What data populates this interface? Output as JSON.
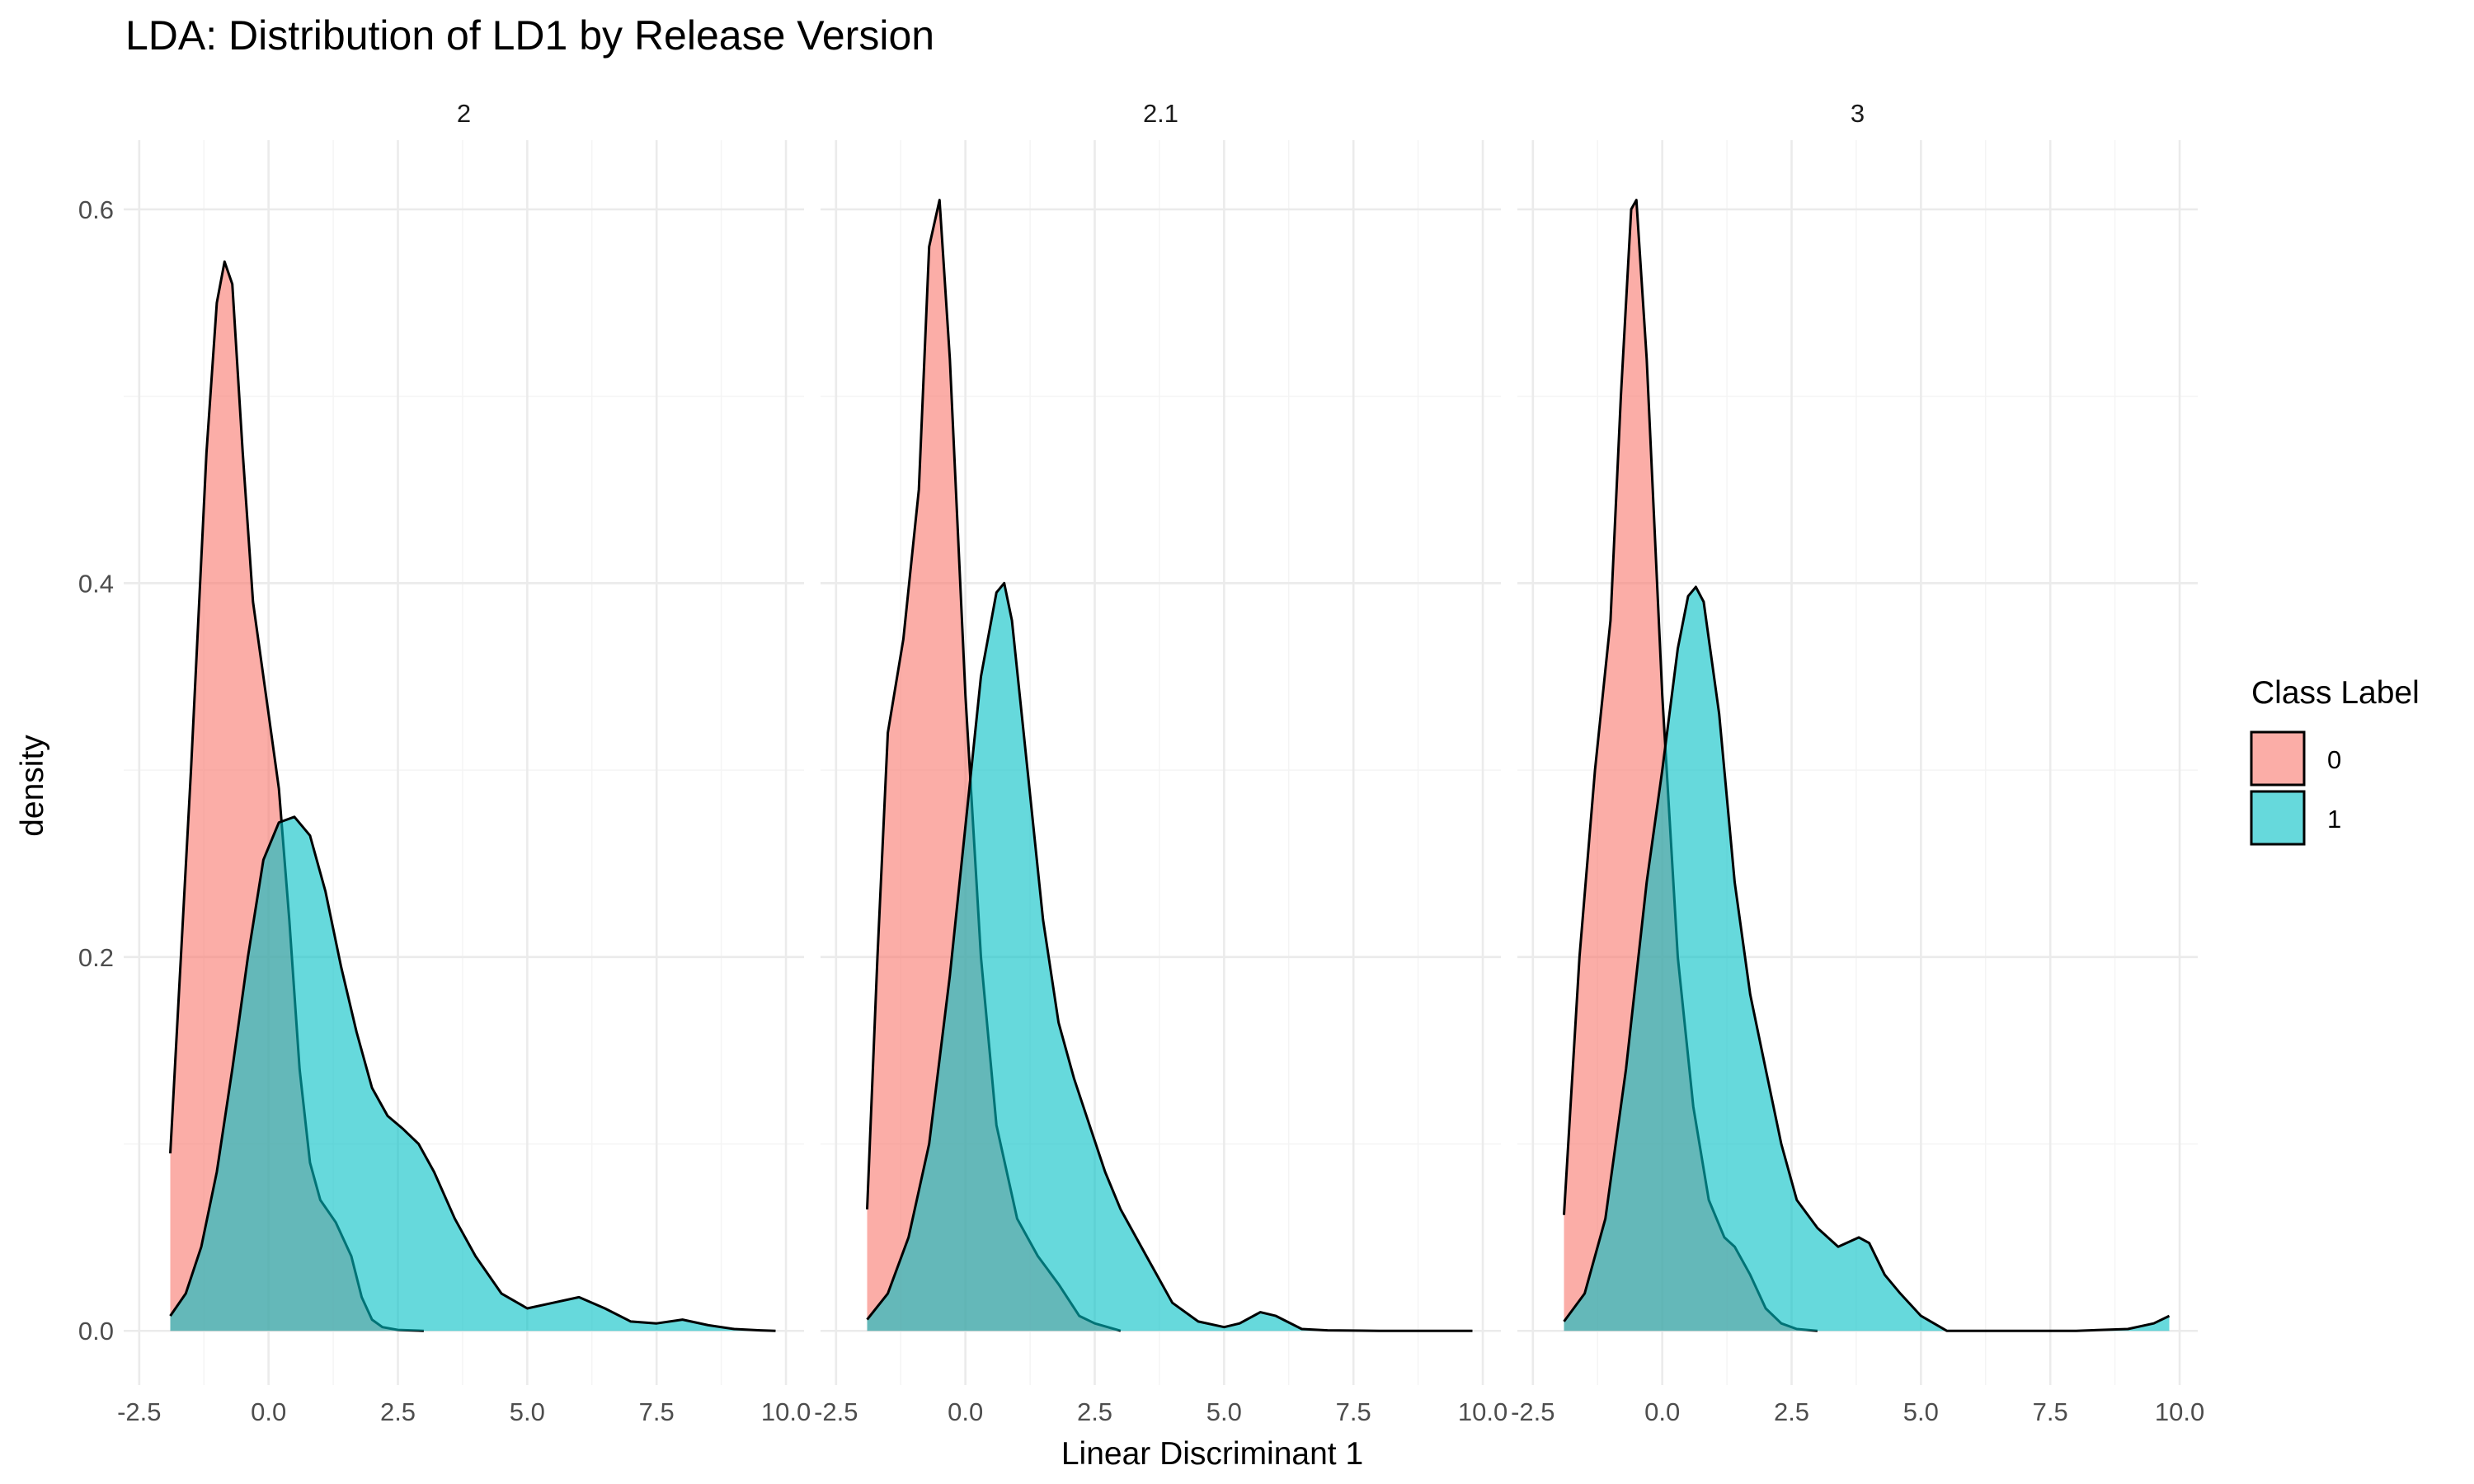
{
  "chart_data": {
    "type": "area",
    "title": "LDA: Distribution of LD1 by Release Version",
    "xlabel": "Linear Discriminant 1",
    "ylabel": "density",
    "xlim": [
      -2.5,
      10.0
    ],
    "ylim": [
      0,
      0.6
    ],
    "x_ticks": [
      "-2.5",
      "0.0",
      "2.5",
      "5.0",
      "7.5",
      "10.0"
    ],
    "y_ticks": [
      "0.0",
      "0.2",
      "0.4",
      "0.6"
    ],
    "grid": true,
    "legend": {
      "title": "Class Label",
      "position": "right",
      "entries": [
        "0",
        "1"
      ]
    },
    "colors": {
      "0": "#F8766D",
      "1": "#00BFC4"
    },
    "fill_opacity": 0.6,
    "facets": [
      {
        "label": "2",
        "series": [
          {
            "name": "0",
            "x": [
              -1.9,
              -1.5,
              -1.2,
              -1.0,
              -0.85,
              -0.7,
              -0.5,
              -0.3,
              0.0,
              0.2,
              0.4,
              0.6,
              0.8,
              1.0,
              1.3,
              1.6,
              1.8,
              2.0,
              2.2,
              2.5,
              3.0
            ],
            "y": [
              0.095,
              0.3,
              0.47,
              0.55,
              0.572,
              0.56,
              0.47,
              0.39,
              0.33,
              0.29,
              0.22,
              0.14,
              0.09,
              0.07,
              0.058,
              0.04,
              0.018,
              0.006,
              0.002,
              0.0005,
              0.0
            ]
          },
          {
            "name": "1",
            "x": [
              -1.9,
              -1.6,
              -1.3,
              -1.0,
              -0.7,
              -0.4,
              -0.1,
              0.2,
              0.5,
              0.8,
              1.1,
              1.4,
              1.7,
              2.0,
              2.3,
              2.6,
              2.9,
              3.2,
              3.6,
              4.0,
              4.5,
              5.0,
              5.5,
              6.0,
              6.5,
              7.0,
              7.5,
              8.0,
              8.5,
              9.0,
              9.5,
              9.8
            ],
            "y": [
              0.008,
              0.02,
              0.045,
              0.085,
              0.14,
              0.2,
              0.252,
              0.272,
              0.275,
              0.265,
              0.235,
              0.195,
              0.16,
              0.13,
              0.115,
              0.108,
              0.1,
              0.085,
              0.06,
              0.04,
              0.02,
              0.012,
              0.015,
              0.018,
              0.012,
              0.005,
              0.004,
              0.006,
              0.003,
              0.001,
              0.0003,
              0.0
            ]
          }
        ]
      },
      {
        "label": "2.1",
        "series": [
          {
            "name": "0",
            "x": [
              -1.9,
              -1.7,
              -1.5,
              -1.2,
              -0.9,
              -0.7,
              -0.5,
              -0.3,
              0.0,
              0.3,
              0.6,
              1.0,
              1.4,
              1.8,
              2.2,
              2.5,
              3.0
            ],
            "y": [
              0.065,
              0.2,
              0.32,
              0.37,
              0.45,
              0.58,
              0.605,
              0.52,
              0.34,
              0.2,
              0.11,
              0.06,
              0.04,
              0.025,
              0.008,
              0.004,
              0.0
            ]
          },
          {
            "name": "1",
            "x": [
              -1.9,
              -1.5,
              -1.1,
              -0.7,
              -0.3,
              0.0,
              0.3,
              0.6,
              0.75,
              0.9,
              1.2,
              1.5,
              1.8,
              2.1,
              2.4,
              2.7,
              3.0,
              3.5,
              4.0,
              4.5,
              5.0,
              5.3,
              5.7,
              6.0,
              6.5,
              7.0,
              8.0,
              9.0,
              9.8
            ],
            "y": [
              0.006,
              0.02,
              0.05,
              0.1,
              0.19,
              0.27,
              0.35,
              0.395,
              0.4,
              0.38,
              0.3,
              0.22,
              0.165,
              0.135,
              0.11,
              0.085,
              0.065,
              0.04,
              0.015,
              0.005,
              0.002,
              0.004,
              0.01,
              0.008,
              0.001,
              0.0003,
              0.0,
              0.0,
              0.0
            ]
          }
        ]
      },
      {
        "label": "3",
        "series": [
          {
            "name": "0",
            "x": [
              -1.9,
              -1.6,
              -1.3,
              -1.0,
              -0.8,
              -0.6,
              -0.5,
              -0.3,
              0.0,
              0.3,
              0.6,
              0.9,
              1.2,
              1.4,
              1.7,
              2.0,
              2.3,
              2.6,
              3.0
            ],
            "y": [
              0.062,
              0.2,
              0.3,
              0.38,
              0.5,
              0.6,
              0.605,
              0.52,
              0.34,
              0.2,
              0.12,
              0.07,
              0.05,
              0.045,
              0.03,
              0.012,
              0.004,
              0.001,
              0.0
            ]
          },
          {
            "name": "1",
            "x": [
              -1.9,
              -1.5,
              -1.1,
              -0.7,
              -0.3,
              0.0,
              0.3,
              0.5,
              0.65,
              0.8,
              1.1,
              1.4,
              1.7,
              2.0,
              2.3,
              2.6,
              3.0,
              3.4,
              3.8,
              4.0,
              4.3,
              4.6,
              5.0,
              5.5,
              6.0,
              7.0,
              8.0,
              9.0,
              9.5,
              9.8
            ],
            "y": [
              0.005,
              0.02,
              0.06,
              0.14,
              0.24,
              0.3,
              0.365,
              0.393,
              0.398,
              0.39,
              0.33,
              0.24,
              0.18,
              0.14,
              0.1,
              0.07,
              0.055,
              0.045,
              0.05,
              0.047,
              0.03,
              0.02,
              0.008,
              0.0,
              0.0,
              0.0,
              0.0,
              0.001,
              0.004,
              0.008
            ]
          }
        ]
      }
    ]
  }
}
